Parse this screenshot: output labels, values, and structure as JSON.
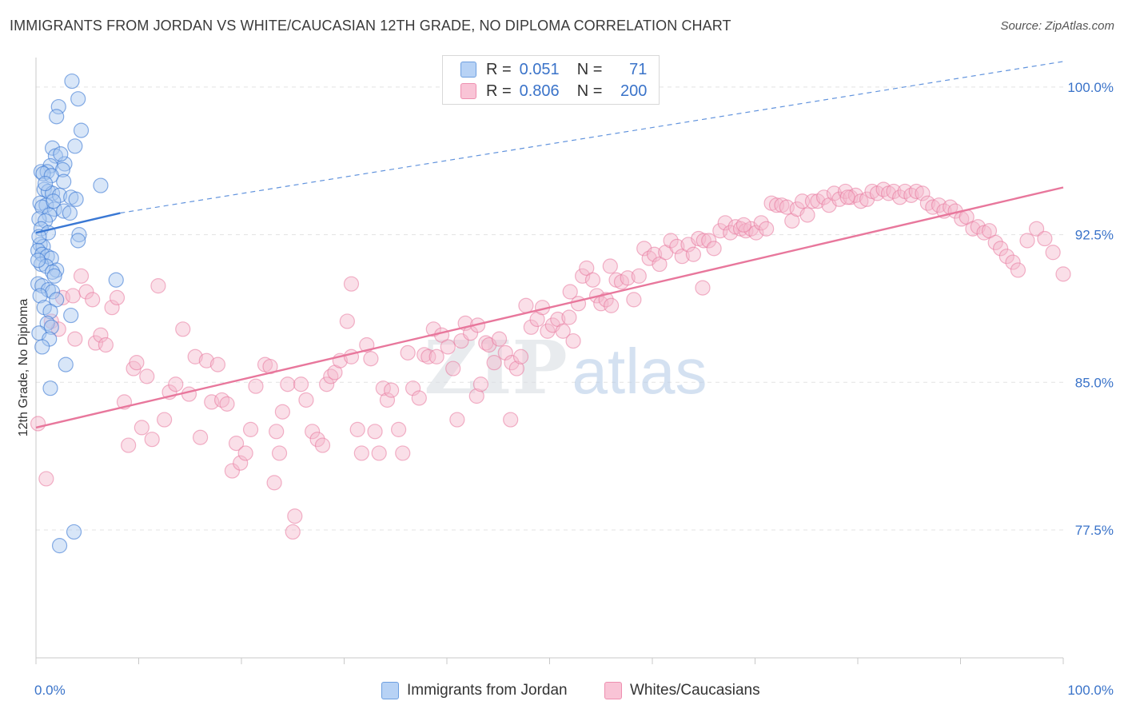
{
  "title": "IMMIGRANTS FROM JORDAN VS WHITE/CAUCASIAN 12TH GRADE, NO DIPLOMA CORRELATION CHART",
  "source": "Source: ZipAtlas.com",
  "watermark": {
    "zip": "ZIP",
    "atlas": "atlas"
  },
  "legend": {
    "r_label": "R =",
    "n_label": "N =",
    "series": [
      {
        "name": "Immigrants from Jordan",
        "r": "0.051",
        "n": "71"
      },
      {
        "name": "Whites/Caucasians",
        "r": "0.806",
        "n": "200"
      }
    ]
  },
  "chart_data": {
    "type": "scatter",
    "title": "IMMIGRANTS FROM JORDAN VS WHITE/CAUCASIAN 12TH GRADE, NO DIPLOMA CORRELATION CHART",
    "xlabel": "",
    "ylabel": "12th Grade, No Diploma",
    "xlim": [
      0,
      100
    ],
    "ylim": [
      71.0,
      101.5
    ],
    "x_tick_labels": [
      "0.0%",
      "100.0%"
    ],
    "y_ticks": [
      77.5,
      85.0,
      92.5,
      100.0
    ],
    "y_tick_labels": [
      "77.5%",
      "85.0%",
      "92.5%",
      "100.0%"
    ],
    "grid": true,
    "colors": {
      "blue": "#3a78d4",
      "blue_fill": "#a9c8f0",
      "pink": "#e8779c",
      "pink_fill": "#f5b8cd",
      "tick_text": "#3a73c9"
    },
    "series": [
      {
        "name": "Immigrants from Jordan",
        "color": "#3a78d4",
        "trend": {
          "x": [
            0,
            8.2
          ],
          "y": [
            92.6,
            93.6
          ],
          "dashed_to": [
            100,
            101.3
          ]
        },
        "points": [
          [
            3.5,
            100.3
          ],
          [
            4.1,
            99.4
          ],
          [
            2.2,
            99.0
          ],
          [
            2.0,
            98.5
          ],
          [
            4.4,
            97.8
          ],
          [
            3.8,
            97.0
          ],
          [
            1.6,
            96.9
          ],
          [
            1.9,
            96.5
          ],
          [
            2.8,
            96.1
          ],
          [
            1.4,
            96.0
          ],
          [
            2.6,
            95.8
          ],
          [
            0.5,
            95.7
          ],
          [
            1.1,
            95.7
          ],
          [
            0.7,
            95.6
          ],
          [
            1.5,
            95.5
          ],
          [
            2.7,
            95.2
          ],
          [
            6.3,
            95.0
          ],
          [
            0.8,
            94.8
          ],
          [
            1.2,
            94.7
          ],
          [
            1.6,
            94.6
          ],
          [
            2.3,
            94.5
          ],
          [
            3.4,
            94.4
          ],
          [
            3.9,
            94.3
          ],
          [
            0.4,
            94.1
          ],
          [
            1.0,
            94.0
          ],
          [
            0.6,
            93.9
          ],
          [
            1.8,
            93.8
          ],
          [
            2.7,
            93.7
          ],
          [
            3.3,
            93.6
          ],
          [
            1.3,
            93.5
          ],
          [
            0.3,
            93.3
          ],
          [
            0.9,
            93.2
          ],
          [
            0.5,
            92.8
          ],
          [
            1.2,
            92.6
          ],
          [
            4.2,
            92.5
          ],
          [
            4.1,
            92.2
          ],
          [
            0.4,
            92.0
          ],
          [
            0.7,
            91.9
          ],
          [
            0.2,
            91.7
          ],
          [
            0.6,
            91.5
          ],
          [
            1.1,
            91.4
          ],
          [
            1.5,
            91.3
          ],
          [
            0.5,
            91.0
          ],
          [
            1.0,
            90.9
          ],
          [
            2.0,
            90.7
          ],
          [
            1.6,
            90.6
          ],
          [
            1.8,
            90.4
          ],
          [
            7.8,
            90.2
          ],
          [
            0.2,
            90.0
          ],
          [
            0.6,
            89.9
          ],
          [
            1.2,
            89.7
          ],
          [
            1.6,
            89.6
          ],
          [
            0.4,
            89.4
          ],
          [
            2.0,
            89.2
          ],
          [
            0.8,
            88.8
          ],
          [
            1.4,
            88.6
          ],
          [
            3.4,
            88.4
          ],
          [
            1.1,
            88.0
          ],
          [
            1.5,
            87.8
          ],
          [
            0.3,
            87.5
          ],
          [
            1.3,
            87.2
          ],
          [
            0.6,
            86.8
          ],
          [
            2.9,
            85.9
          ],
          [
            1.4,
            84.7
          ],
          [
            3.7,
            77.4
          ],
          [
            2.3,
            76.7
          ],
          [
            0.2,
            91.2
          ],
          [
            0.3,
            92.4
          ],
          [
            1.7,
            94.2
          ],
          [
            2.4,
            96.6
          ],
          [
            0.9,
            95.1
          ]
        ]
      },
      {
        "name": "Whites/Caucasians",
        "color": "#e8779c",
        "trend": {
          "x": [
            0,
            100
          ],
          "y": [
            82.7,
            94.9
          ]
        },
        "points": [
          [
            0.2,
            82.9
          ],
          [
            1.0,
            80.1
          ],
          [
            1.5,
            88.1
          ],
          [
            2.2,
            87.7
          ],
          [
            2.6,
            89.3
          ],
          [
            3.6,
            89.4
          ],
          [
            4.4,
            90.4
          ],
          [
            3.8,
            87.2
          ],
          [
            4.9,
            89.6
          ],
          [
            5.8,
            87.0
          ],
          [
            5.5,
            89.2
          ],
          [
            6.3,
            87.4
          ],
          [
            6.8,
            86.9
          ],
          [
            7.4,
            88.8
          ],
          [
            7.9,
            89.3
          ],
          [
            8.6,
            84.0
          ],
          [
            9.0,
            81.8
          ],
          [
            9.5,
            85.7
          ],
          [
            9.8,
            86.0
          ],
          [
            10.3,
            82.7
          ],
          [
            10.8,
            85.3
          ],
          [
            11.3,
            82.1
          ],
          [
            11.9,
            89.9
          ],
          [
            12.5,
            83.1
          ],
          [
            13.0,
            84.5
          ],
          [
            13.6,
            84.9
          ],
          [
            14.3,
            87.7
          ],
          [
            14.9,
            84.4
          ],
          [
            15.5,
            86.3
          ],
          [
            16.0,
            82.2
          ],
          [
            16.6,
            86.1
          ],
          [
            17.1,
            84.0
          ],
          [
            17.7,
            85.9
          ],
          [
            18.1,
            84.1
          ],
          [
            18.6,
            83.9
          ],
          [
            19.1,
            80.5
          ],
          [
            19.5,
            81.9
          ],
          [
            19.9,
            80.9
          ],
          [
            20.4,
            81.4
          ],
          [
            20.9,
            82.6
          ],
          [
            21.4,
            84.8
          ],
          [
            22.3,
            85.9
          ],
          [
            22.8,
            85.8
          ],
          [
            23.4,
            82.5
          ],
          [
            23.7,
            81.4
          ],
          [
            24.5,
            84.9
          ],
          [
            25.2,
            78.2
          ],
          [
            25.0,
            77.4
          ],
          [
            24.0,
            83.5
          ],
          [
            25.8,
            84.9
          ],
          [
            26.3,
            84.1
          ],
          [
            26.9,
            82.5
          ],
          [
            27.4,
            82.1
          ],
          [
            27.9,
            81.8
          ],
          [
            28.3,
            84.9
          ],
          [
            28.7,
            85.3
          ],
          [
            29.1,
            85.5
          ],
          [
            29.6,
            86.1
          ],
          [
            30.3,
            88.1
          ],
          [
            30.7,
            86.3
          ],
          [
            31.3,
            82.6
          ],
          [
            31.7,
            81.4
          ],
          [
            32.2,
            86.9
          ],
          [
            32.6,
            86.2
          ],
          [
            33.0,
            82.5
          ],
          [
            33.4,
            81.4
          ],
          [
            33.8,
            84.7
          ],
          [
            34.2,
            84.1
          ],
          [
            34.6,
            84.6
          ],
          [
            35.3,
            82.6
          ],
          [
            35.7,
            81.4
          ],
          [
            36.2,
            86.5
          ],
          [
            36.7,
            84.7
          ],
          [
            37.3,
            84.2
          ],
          [
            37.8,
            86.4
          ],
          [
            38.2,
            86.3
          ],
          [
            38.7,
            87.7
          ],
          [
            39.0,
            86.3
          ],
          [
            39.5,
            87.4
          ],
          [
            40.1,
            86.8
          ],
          [
            40.6,
            85.7
          ],
          [
            41.0,
            83.1
          ],
          [
            41.4,
            87.1
          ],
          [
            41.8,
            88.0
          ],
          [
            42.3,
            87.5
          ],
          [
            42.9,
            84.3
          ],
          [
            43.3,
            84.9
          ],
          [
            43.8,
            87.0
          ],
          [
            44.1,
            86.9
          ],
          [
            44.6,
            86.0
          ],
          [
            45.1,
            87.2
          ],
          [
            45.7,
            86.5
          ],
          [
            46.3,
            86.0
          ],
          [
            46.8,
            85.7
          ],
          [
            47.2,
            86.3
          ],
          [
            47.7,
            88.9
          ],
          [
            48.2,
            87.8
          ],
          [
            48.8,
            88.2
          ],
          [
            49.3,
            88.8
          ],
          [
            49.8,
            87.6
          ],
          [
            50.3,
            87.9
          ],
          [
            50.8,
            88.2
          ],
          [
            51.3,
            87.6
          ],
          [
            51.9,
            88.3
          ],
          [
            52.3,
            87.1
          ],
          [
            52.8,
            89.0
          ],
          [
            53.2,
            90.4
          ],
          [
            53.6,
            90.8
          ],
          [
            54.2,
            90.2
          ],
          [
            54.6,
            89.4
          ],
          [
            55.0,
            89.0
          ],
          [
            55.5,
            89.2
          ],
          [
            56.0,
            88.9
          ],
          [
            56.5,
            90.2
          ],
          [
            57.0,
            90.1
          ],
          [
            57.6,
            90.3
          ],
          [
            58.2,
            89.2
          ],
          [
            58.7,
            90.4
          ],
          [
            59.2,
            91.8
          ],
          [
            59.7,
            91.3
          ],
          [
            60.2,
            91.5
          ],
          [
            60.7,
            91.0
          ],
          [
            61.3,
            91.6
          ],
          [
            61.8,
            92.2
          ],
          [
            62.4,
            91.9
          ],
          [
            62.9,
            91.4
          ],
          [
            63.5,
            92.0
          ],
          [
            64.0,
            91.5
          ],
          [
            64.5,
            92.3
          ],
          [
            65.0,
            92.2
          ],
          [
            65.5,
            92.2
          ],
          [
            66.0,
            91.8
          ],
          [
            66.6,
            92.7
          ],
          [
            67.1,
            93.1
          ],
          [
            67.6,
            92.6
          ],
          [
            68.1,
            92.9
          ],
          [
            68.6,
            92.8
          ],
          [
            69.1,
            92.7
          ],
          [
            69.6,
            92.8
          ],
          [
            70.1,
            92.6
          ],
          [
            70.6,
            93.1
          ],
          [
            71.1,
            92.8
          ],
          [
            71.6,
            94.1
          ],
          [
            72.1,
            94.0
          ],
          [
            72.6,
            94.0
          ],
          [
            73.1,
            93.9
          ],
          [
            73.6,
            93.2
          ],
          [
            74.1,
            93.8
          ],
          [
            74.6,
            94.2
          ],
          [
            75.1,
            93.5
          ],
          [
            75.6,
            94.2
          ],
          [
            76.1,
            94.2
          ],
          [
            76.7,
            94.4
          ],
          [
            77.2,
            94.0
          ],
          [
            77.7,
            94.6
          ],
          [
            78.2,
            94.3
          ],
          [
            78.8,
            94.7
          ],
          [
            79.3,
            94.4
          ],
          [
            79.8,
            94.5
          ],
          [
            80.3,
            94.2
          ],
          [
            80.9,
            94.3
          ],
          [
            81.4,
            94.7
          ],
          [
            81.9,
            94.6
          ],
          [
            82.5,
            94.8
          ],
          [
            83.0,
            94.6
          ],
          [
            83.5,
            94.7
          ],
          [
            84.1,
            94.4
          ],
          [
            84.6,
            94.7
          ],
          [
            85.2,
            94.5
          ],
          [
            85.7,
            94.7
          ],
          [
            86.3,
            94.6
          ],
          [
            86.8,
            94.1
          ],
          [
            87.3,
            93.9
          ],
          [
            87.9,
            94.0
          ],
          [
            88.4,
            93.7
          ],
          [
            89.0,
            93.9
          ],
          [
            89.5,
            93.7
          ],
          [
            90.1,
            93.3
          ],
          [
            90.6,
            93.4
          ],
          [
            91.2,
            92.8
          ],
          [
            91.7,
            92.9
          ],
          [
            92.3,
            92.6
          ],
          [
            92.8,
            92.7
          ],
          [
            93.4,
            92.1
          ],
          [
            93.9,
            91.8
          ],
          [
            94.5,
            91.4
          ],
          [
            95.1,
            91.1
          ],
          [
            95.6,
            90.7
          ],
          [
            100.0,
            90.5
          ],
          [
            96.5,
            92.2
          ],
          [
            97.4,
            92.8
          ],
          [
            98.2,
            92.3
          ],
          [
            99.0,
            91.6
          ],
          [
            64.9,
            89.8
          ],
          [
            23.2,
            79.9
          ],
          [
            43.0,
            87.9
          ],
          [
            52.0,
            89.6
          ],
          [
            68.9,
            93.0
          ],
          [
            55.9,
            90.9
          ],
          [
            30.7,
            90.0
          ],
          [
            79.0,
            94.4
          ],
          [
            46.2,
            83.1
          ]
        ]
      }
    ]
  }
}
